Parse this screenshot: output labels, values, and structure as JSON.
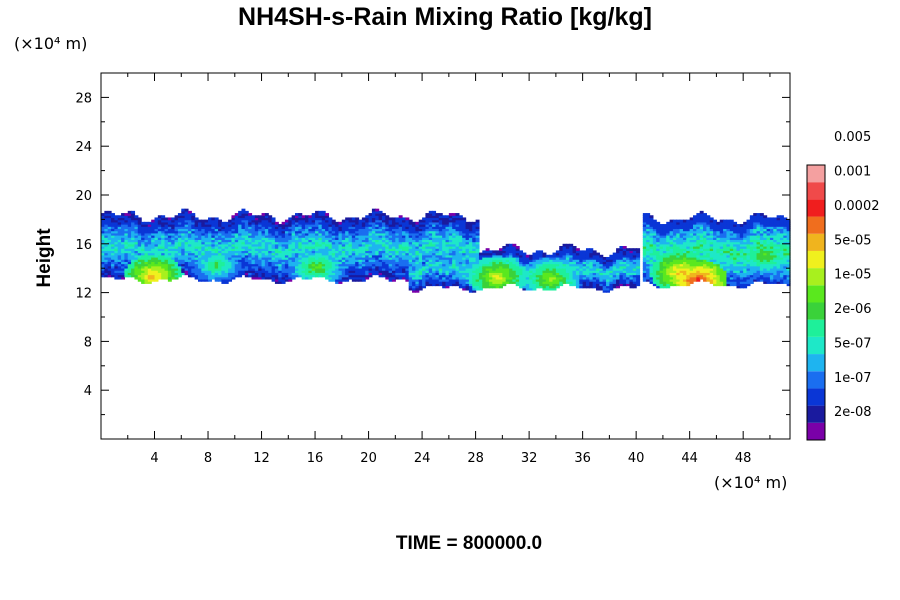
{
  "chart_data": {
    "type": "heatmap",
    "title": "NH4SH-s-Rain Mixing Ratio [kg/kg]",
    "ylabel": "Height",
    "x_unit_label": "(×10⁴ m)",
    "y_unit_label": "(×10⁴ m)",
    "xlim": [
      0,
      51.5
    ],
    "ylim": [
      0,
      30
    ],
    "x_ticks": [
      4,
      8,
      12,
      16,
      20,
      24,
      28,
      32,
      36,
      40,
      44,
      48
    ],
    "y_ticks": [
      4,
      8,
      12,
      16,
      20,
      24,
      28
    ],
    "x_tick_labels": [
      "4",
      "8",
      "12",
      "16",
      "20",
      "24",
      "28",
      "32",
      "36",
      "40",
      "44",
      "48"
    ],
    "y_tick_labels": [
      "4",
      "8",
      "12",
      "16",
      "20",
      "24",
      "28"
    ],
    "colorbar": {
      "labels": [
        "2e-08",
        "1e-07",
        "5e-07",
        "2e-06",
        "1e-05",
        "5e-05",
        "0.0002",
        "0.001",
        "0.005"
      ],
      "colors": [
        "#7a00a8",
        "#1a1a9e",
        "#0a36d6",
        "#1a6ef0",
        "#1eb4f0",
        "#1ee8c8",
        "#1ef09a",
        "#3ad23a",
        "#5ae81e",
        "#a8f01e",
        "#f0f01e",
        "#f0b41e",
        "#f06e1e",
        "#f01e1e",
        "#f04a4a",
        "#f4a0a0"
      ]
    },
    "field_bands": [
      {
        "x_range": [
          0,
          28
        ],
        "bottom": 13.0,
        "top": 18.2,
        "base_level": 4
      },
      {
        "x_range": [
          23,
          40
        ],
        "bottom": 12.3,
        "top": 15.4,
        "base_level": 4
      },
      {
        "x_range": [
          40.5,
          51.5
        ],
        "bottom": 12.6,
        "top": 18.0,
        "base_level": 5
      }
    ],
    "hotspots": [
      {
        "x": 3.8,
        "y": 13.3,
        "peak_level": 11
      },
      {
        "x": 8.5,
        "y": 14.2,
        "peak_level": 7
      },
      {
        "x": 16.0,
        "y": 14.0,
        "peak_level": 8
      },
      {
        "x": 29.5,
        "y": 13.2,
        "peak_level": 10
      },
      {
        "x": 33.5,
        "y": 13.1,
        "peak_level": 9
      },
      {
        "x": 43.2,
        "y": 13.6,
        "peak_level": 11
      },
      {
        "x": 44.5,
        "y": 12.9,
        "peak_level": 13
      },
      {
        "x": 49.5,
        "y": 15.0,
        "peak_level": 8
      }
    ]
  },
  "footer": {
    "time_label": "TIME = 800000.0"
  }
}
